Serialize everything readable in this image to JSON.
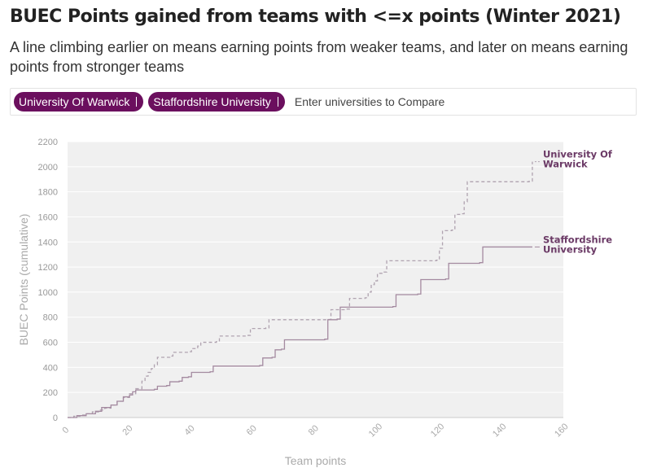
{
  "header": {
    "title": "BUEC Points gained from teams with <=x points (Winter 2021)",
    "subtitle": "A line climbing earlier on means earning points from weaker teams, and later on means earning points from stronger teams"
  },
  "picker": {
    "chips": [
      "University Of Warwick",
      "Staffordshire University"
    ],
    "placeholder": "Enter universities to Compare",
    "chip_color": "#6b0f5e"
  },
  "chart_data": {
    "type": "line",
    "xlabel": "Team points",
    "ylabel": "BUEC Points (cumulative)",
    "xlim": [
      0,
      160
    ],
    "ylim": [
      0,
      2200
    ],
    "x_ticks": [
      0,
      20,
      40,
      60,
      80,
      100,
      120,
      140,
      160
    ],
    "y_ticks": [
      0,
      200,
      400,
      600,
      800,
      1000,
      1200,
      1400,
      1600,
      1800,
      2000,
      2200
    ],
    "grid": true,
    "background": "#f0f0f0",
    "series": [
      {
        "name": "University Of Warwick",
        "label_lines": [
          "University Of",
          "Warwick"
        ],
        "style": "dashed",
        "color": "#b0a3b0",
        "points": [
          [
            0,
            0
          ],
          [
            2,
            10
          ],
          [
            4,
            20
          ],
          [
            6,
            30
          ],
          [
            8,
            45
          ],
          [
            10,
            60
          ],
          [
            12,
            75
          ],
          [
            14,
            100
          ],
          [
            16,
            130
          ],
          [
            18,
            160
          ],
          [
            20,
            190
          ],
          [
            22,
            230
          ],
          [
            24,
            290
          ],
          [
            25,
            330
          ],
          [
            26,
            360
          ],
          [
            27,
            390
          ],
          [
            28,
            420
          ],
          [
            29,
            480
          ],
          [
            33,
            490
          ],
          [
            34,
            520
          ],
          [
            39,
            525
          ],
          [
            40,
            550
          ],
          [
            42,
            570
          ],
          [
            43,
            600
          ],
          [
            48,
            605
          ],
          [
            49,
            650
          ],
          [
            58,
            655
          ],
          [
            59,
            710
          ],
          [
            64,
            715
          ],
          [
            65,
            780
          ],
          [
            84,
            782
          ],
          [
            85,
            860
          ],
          [
            90,
            865
          ],
          [
            91,
            950
          ],
          [
            96,
            955
          ],
          [
            97,
            1000
          ],
          [
            98,
            1060
          ],
          [
            99,
            1090
          ],
          [
            100,
            1150
          ],
          [
            102,
            1160
          ],
          [
            103,
            1250
          ],
          [
            119,
            1255
          ],
          [
            120,
            1350
          ],
          [
            121,
            1490
          ],
          [
            124,
            1495
          ],
          [
            125,
            1620
          ],
          [
            127,
            1625
          ],
          [
            128,
            1720
          ],
          [
            129,
            1880
          ],
          [
            149,
            1885
          ],
          [
            150,
            2040
          ]
        ]
      },
      {
        "name": "Staffordshire University",
        "label_lines": [
          "Staffordshire",
          "University"
        ],
        "style": "solid",
        "color": "#a48aa0",
        "points": [
          [
            0,
            0
          ],
          [
            3,
            15
          ],
          [
            6,
            30
          ],
          [
            9,
            50
          ],
          [
            11,
            80
          ],
          [
            14,
            100
          ],
          [
            16,
            130
          ],
          [
            18,
            165
          ],
          [
            20,
            180
          ],
          [
            21,
            205
          ],
          [
            22,
            220
          ],
          [
            28,
            225
          ],
          [
            29,
            250
          ],
          [
            32,
            255
          ],
          [
            33,
            285
          ],
          [
            36,
            290
          ],
          [
            37,
            320
          ],
          [
            39,
            325
          ],
          [
            40,
            360
          ],
          [
            46,
            365
          ],
          [
            47,
            410
          ],
          [
            62,
            415
          ],
          [
            63,
            475
          ],
          [
            66,
            480
          ],
          [
            67,
            540
          ],
          [
            69,
            545
          ],
          [
            70,
            620
          ],
          [
            83,
            625
          ],
          [
            84,
            780
          ],
          [
            87,
            785
          ],
          [
            88,
            880
          ],
          [
            105,
            885
          ],
          [
            106,
            980
          ],
          [
            113,
            985
          ],
          [
            114,
            1100
          ],
          [
            122,
            1105
          ],
          [
            123,
            1230
          ],
          [
            133,
            1235
          ],
          [
            134,
            1360
          ],
          [
            150,
            1360
          ]
        ]
      }
    ]
  }
}
